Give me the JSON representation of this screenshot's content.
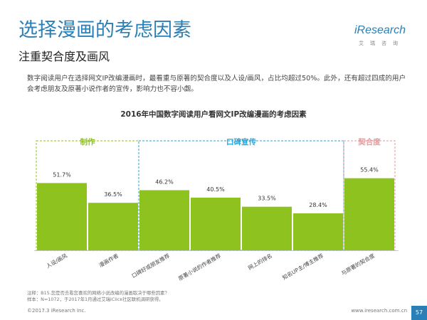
{
  "header": {
    "title": "选择漫画的考虑因素",
    "subtitle": "注重契合度及画风"
  },
  "logo": {
    "wordmark": "iResearch",
    "tagline": "艾瑞咨询"
  },
  "description": "数字阅读用户在选择网文IP改编漫画时，最看重与原著的契合度以及人设/画风，占比均超过50%。此外，还有超过四成的用户会考虑朋友及原著小说作者的宣传，影响力也不容小觑。",
  "colors": {
    "title": "#2a7fb6",
    "bar": "#8dc21f",
    "group_green": "#8dc21f",
    "group_blue": "#29a6d9",
    "group_pink": "#e69a9a"
  },
  "chart_data": {
    "type": "bar",
    "title": "2016年中国数字阅读用户看网文IP改编漫画的考虑因素",
    "categories": [
      "人设/画风",
      "漫画作者",
      "口碑好或朋友推荐",
      "原著小说的作者推荐",
      "网上的排名",
      "知名UP主/博主推荐",
      "与原著的契合度"
    ],
    "values": [
      51.7,
      36.5,
      46.2,
      40.5,
      33.5,
      28.4,
      55.4
    ],
    "value_labels": [
      "51.7%",
      "36.5%",
      "46.2%",
      "40.5%",
      "33.5%",
      "28.4%",
      "55.4%"
    ],
    "ylim": [
      0,
      70
    ],
    "grid": false,
    "groups": [
      {
        "label": "制作",
        "start": 0,
        "end": 1,
        "color": "#8dc21f"
      },
      {
        "label": "口碑宣传",
        "start": 2,
        "end": 5,
        "color": "#29a6d9"
      },
      {
        "label": "契合度",
        "start": 6,
        "end": 6,
        "color": "#e69a9a"
      }
    ]
  },
  "footer": {
    "note_line1": "注释：B15.您是否去看您喜欢的网络小说改编的漫画取决于哪些因素？",
    "note_line2": "样本：N=1072，于2017年1月通过艾瑞iClick社区联机调研获得。",
    "copyright": "©2017.3 iResearch Inc.",
    "website": "www.iresearch.com.cn",
    "page": "57"
  }
}
